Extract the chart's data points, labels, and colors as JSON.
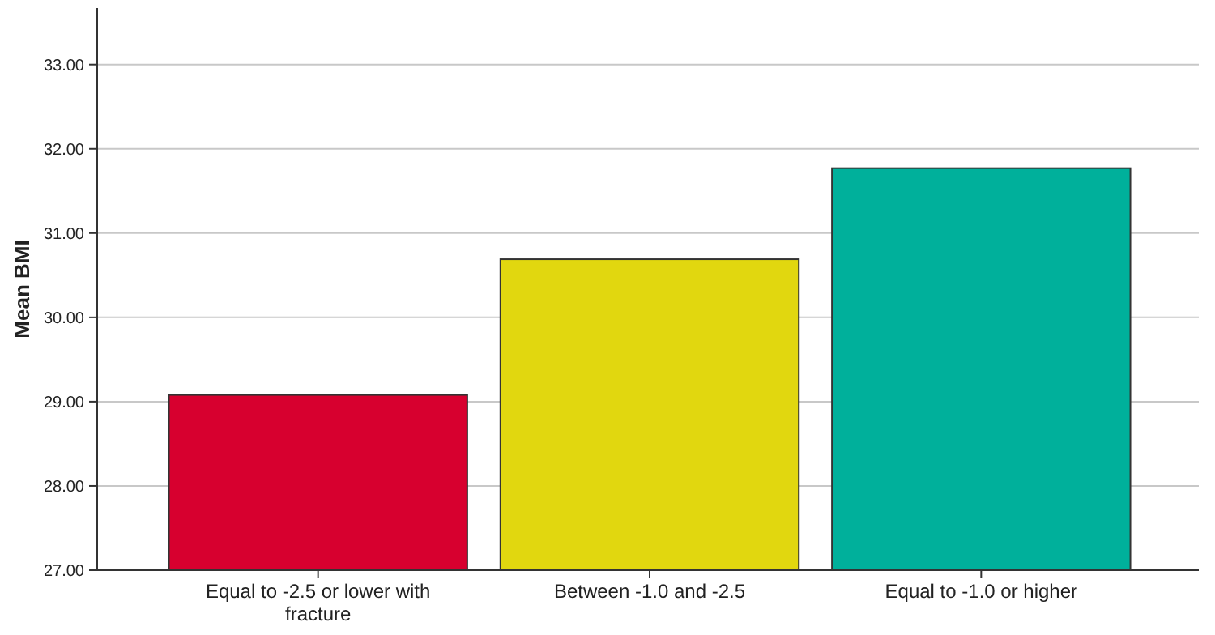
{
  "chart_data": {
    "type": "bar",
    "ylabel": "Mean BMI",
    "categories": [
      "Equal to -2.5 or lower with fracture",
      "Between -1.0 and -2.5",
      "Equal to -1.0 or higher"
    ],
    "values": [
      29.08,
      30.69,
      31.77
    ],
    "colors": [
      "#d7002f",
      "#e1d70f",
      "#00b09b"
    ],
    "ylim": [
      27,
      33.67
    ],
    "yticks": [
      {
        "value": 27,
        "label": "27.00"
      },
      {
        "value": 28,
        "label": "28.00"
      },
      {
        "value": 29,
        "label": "29.00"
      },
      {
        "value": 30,
        "label": "30.00"
      },
      {
        "value": 31,
        "label": "31.00"
      },
      {
        "value": 32,
        "label": "32.00"
      },
      {
        "value": 33,
        "label": "33.00"
      }
    ],
    "grid": "y"
  }
}
